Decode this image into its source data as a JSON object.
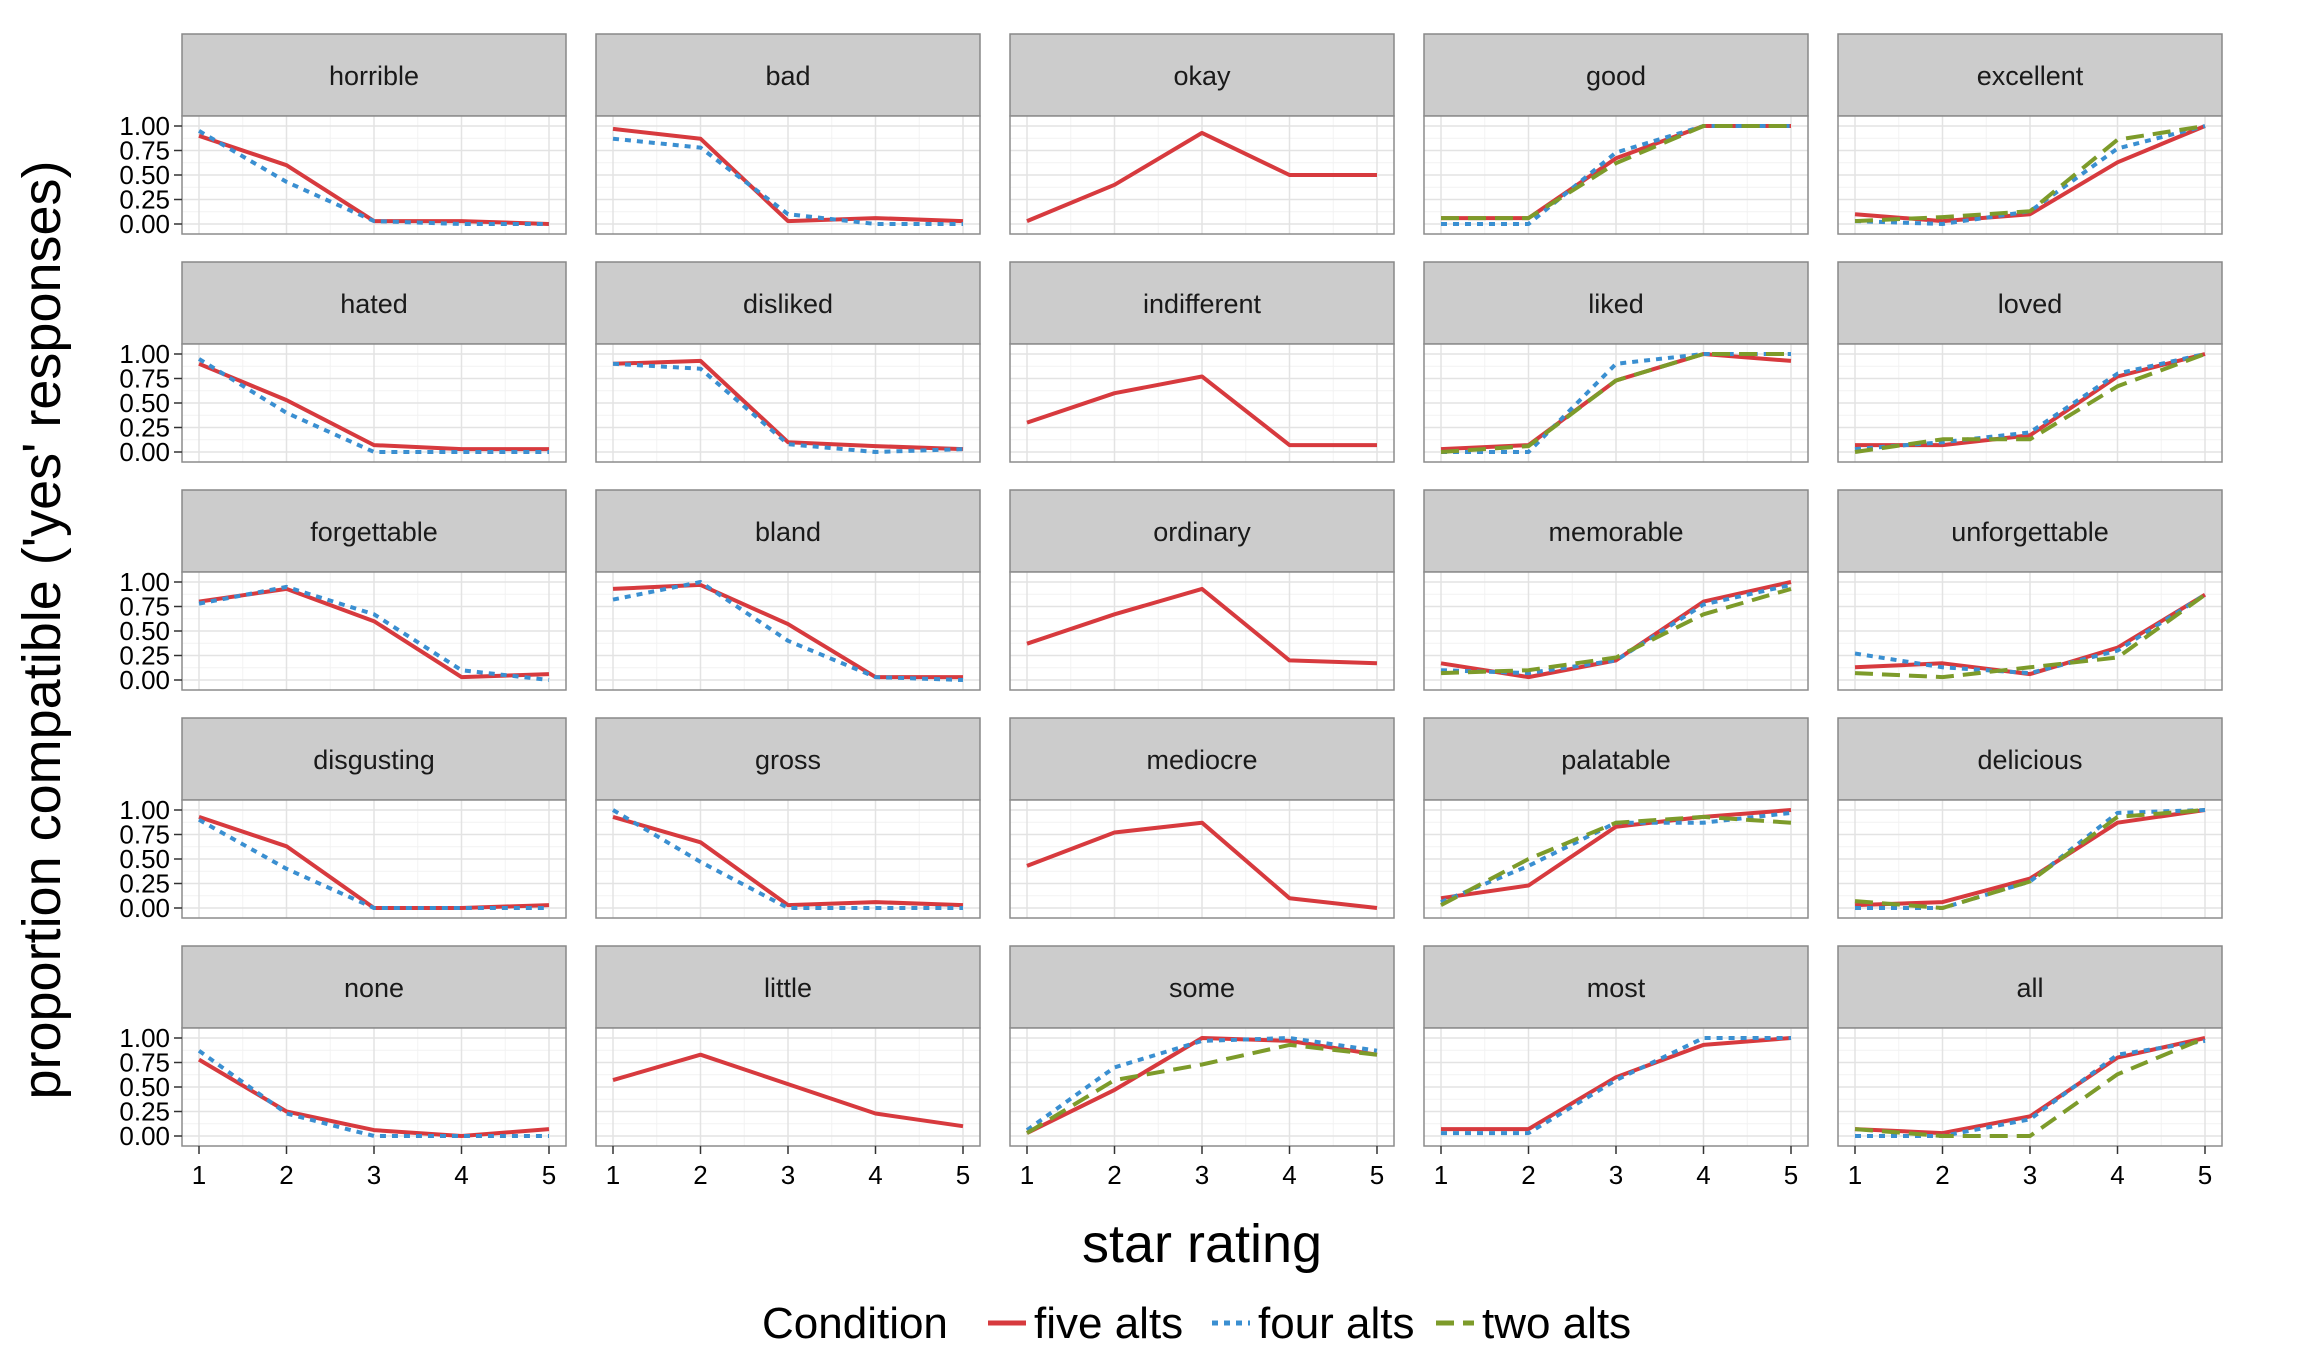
{
  "chart_data": {
    "type": "line",
    "xlabel": "star rating",
    "ylabel": "proportion compatible ('yes' responses)",
    "x": [
      1,
      2,
      3,
      4,
      5
    ],
    "xlim": [
      1,
      5
    ],
    "ylim": [
      0,
      1
    ],
    "x_ticks": [
      "1",
      "2",
      "3",
      "4",
      "5"
    ],
    "y_ticks": [
      "0.00",
      "0.25",
      "0.50",
      "0.75",
      "1.00"
    ],
    "grid": true,
    "legend": {
      "title": "Condition",
      "position": "bottom",
      "entries": [
        {
          "key": "five",
          "label": "five alts",
          "color": "#d73a3e",
          "dash": "solid"
        },
        {
          "key": "four",
          "label": "four alts",
          "color": "#3a8fd1",
          "dash": "dotted"
        },
        {
          "key": "two",
          "label": "two alts",
          "color": "#7d9b2a",
          "dash": "dashed"
        }
      ]
    },
    "panels": [
      {
        "title": "horrible",
        "series": {
          "five": [
            0.9,
            0.6,
            0.03,
            0.03,
            0.0
          ],
          "four": [
            0.95,
            0.43,
            0.03,
            0.0,
            0.0
          ]
        }
      },
      {
        "title": "bad",
        "series": {
          "five": [
            0.97,
            0.87,
            0.03,
            0.06,
            0.03
          ],
          "four": [
            0.87,
            0.78,
            0.1,
            0.0,
            0.0
          ]
        }
      },
      {
        "title": "okay",
        "series": {
          "five": [
            0.03,
            0.4,
            0.93,
            0.5,
            0.5
          ]
        }
      },
      {
        "title": "good",
        "series": {
          "five": [
            0.06,
            0.06,
            0.67,
            1.0,
            1.0
          ],
          "four": [
            0.0,
            0.0,
            0.73,
            1.0,
            1.0
          ],
          "two": [
            0.06,
            0.06,
            0.62,
            1.0,
            1.0
          ]
        }
      },
      {
        "title": "excellent",
        "series": {
          "five": [
            0.1,
            0.03,
            0.1,
            0.63,
            1.0
          ],
          "four": [
            0.03,
            0.0,
            0.13,
            0.77,
            1.0
          ],
          "two": [
            0.03,
            0.07,
            0.13,
            0.86,
            1.0
          ]
        }
      },
      {
        "title": "hated",
        "series": {
          "five": [
            0.9,
            0.53,
            0.07,
            0.03,
            0.03
          ],
          "four": [
            0.95,
            0.4,
            0.0,
            0.0,
            0.0
          ]
        }
      },
      {
        "title": "disliked",
        "series": {
          "five": [
            0.9,
            0.93,
            0.1,
            0.06,
            0.03
          ],
          "four": [
            0.9,
            0.85,
            0.08,
            0.0,
            0.03
          ]
        }
      },
      {
        "title": "indifferent",
        "series": {
          "five": [
            0.3,
            0.6,
            0.77,
            0.07,
            0.07
          ]
        }
      },
      {
        "title": "liked",
        "series": {
          "five": [
            0.03,
            0.07,
            0.73,
            1.0,
            0.93
          ],
          "four": [
            0.0,
            0.0,
            0.9,
            1.0,
            1.0
          ],
          "two": [
            0.0,
            0.06,
            0.73,
            1.0,
            1.0
          ]
        }
      },
      {
        "title": "loved",
        "series": {
          "five": [
            0.07,
            0.07,
            0.17,
            0.77,
            1.0
          ],
          "four": [
            0.03,
            0.1,
            0.2,
            0.8,
            1.0
          ],
          "two": [
            0.0,
            0.13,
            0.13,
            0.67,
            1.0
          ]
        }
      },
      {
        "title": "forgettable",
        "series": {
          "five": [
            0.8,
            0.93,
            0.6,
            0.03,
            0.06
          ],
          "four": [
            0.78,
            0.95,
            0.67,
            0.1,
            0.0
          ]
        }
      },
      {
        "title": "bland",
        "series": {
          "five": [
            0.93,
            0.97,
            0.57,
            0.03,
            0.03
          ],
          "four": [
            0.82,
            1.0,
            0.4,
            0.03,
            0.0
          ]
        }
      },
      {
        "title": "ordinary",
        "series": {
          "five": [
            0.37,
            0.67,
            0.93,
            0.2,
            0.17
          ]
        }
      },
      {
        "title": "memorable",
        "series": {
          "five": [
            0.17,
            0.03,
            0.2,
            0.8,
            1.0
          ],
          "four": [
            0.1,
            0.07,
            0.2,
            0.77,
            0.97
          ],
          "two": [
            0.07,
            0.1,
            0.23,
            0.67,
            0.93
          ]
        }
      },
      {
        "title": "unforgettable",
        "series": {
          "five": [
            0.13,
            0.17,
            0.06,
            0.33,
            0.87
          ],
          "four": [
            0.27,
            0.13,
            0.07,
            0.3,
            0.87
          ],
          "two": [
            0.07,
            0.03,
            0.13,
            0.23,
            0.87
          ]
        }
      },
      {
        "title": "disgusting",
        "series": {
          "five": [
            0.93,
            0.63,
            0.0,
            0.0,
            0.03
          ],
          "four": [
            0.9,
            0.4,
            0.0,
            0.0,
            0.0
          ]
        }
      },
      {
        "title": "gross",
        "series": {
          "five": [
            0.93,
            0.67,
            0.03,
            0.06,
            0.03
          ],
          "four": [
            1.0,
            0.47,
            0.0,
            0.0,
            0.0
          ]
        }
      },
      {
        "title": "mediocre",
        "series": {
          "five": [
            0.43,
            0.77,
            0.87,
            0.1,
            0.0
          ]
        }
      },
      {
        "title": "palatable",
        "series": {
          "five": [
            0.1,
            0.23,
            0.83,
            0.93,
            1.0
          ],
          "four": [
            0.06,
            0.43,
            0.87,
            0.87,
            0.97
          ],
          "two": [
            0.03,
            0.5,
            0.87,
            0.93,
            0.87
          ]
        }
      },
      {
        "title": "delicious",
        "series": {
          "five": [
            0.03,
            0.06,
            0.3,
            0.87,
            1.0
          ],
          "four": [
            0.0,
            0.0,
            0.27,
            0.97,
            1.0
          ],
          "two": [
            0.07,
            0.0,
            0.27,
            0.93,
            1.0
          ]
        }
      },
      {
        "title": "none",
        "series": {
          "five": [
            0.78,
            0.25,
            0.06,
            0.0,
            0.07
          ],
          "four": [
            0.87,
            0.23,
            0.0,
            0.0,
            0.0
          ]
        }
      },
      {
        "title": "little",
        "series": {
          "five": [
            0.57,
            0.83,
            0.53,
            0.23,
            0.1
          ]
        }
      },
      {
        "title": "some",
        "series": {
          "five": [
            0.03,
            0.47,
            1.0,
            0.97,
            0.83
          ],
          "four": [
            0.06,
            0.7,
            0.97,
            1.0,
            0.87
          ],
          "two": [
            0.03,
            0.57,
            0.73,
            0.93,
            0.83
          ]
        }
      },
      {
        "title": "most",
        "series": {
          "five": [
            0.07,
            0.07,
            0.6,
            0.93,
            1.0
          ],
          "four": [
            0.03,
            0.03,
            0.57,
            1.0,
            1.0
          ]
        }
      },
      {
        "title": "all",
        "series": {
          "five": [
            0.07,
            0.03,
            0.2,
            0.8,
            1.0
          ],
          "four": [
            0.0,
            0.0,
            0.17,
            0.83,
            0.97
          ],
          "two": [
            0.07,
            0.0,
            0.0,
            0.63,
            1.0
          ]
        }
      }
    ]
  }
}
